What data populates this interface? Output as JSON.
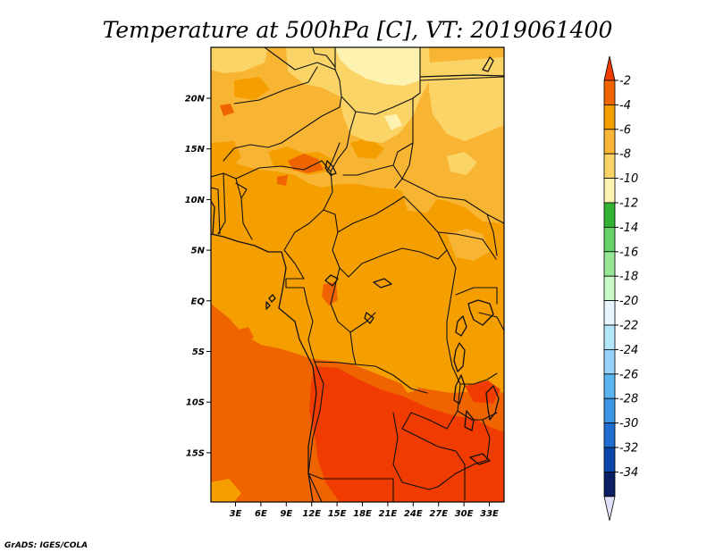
{
  "title": "Temperature at 500hPa [C], VT: 2019061400",
  "credit": "GrADS: IGES/COLA",
  "map": {
    "variable": "Temperature",
    "level": "500hPa",
    "units": "C",
    "valid_time": "2019061400",
    "lat_labels": [
      "20N",
      "15N",
      "10N",
      "5N",
      "EQ",
      "5S",
      "10S",
      "15S"
    ],
    "lon_labels": [
      "3E",
      "6E",
      "9E",
      "12E",
      "15E",
      "18E",
      "21E",
      "24E",
      "27E",
      "30E",
      "33E"
    ]
  },
  "colorbar": {
    "labels": [
      "-2",
      "-4",
      "-6",
      "-8",
      "-10",
      "-12",
      "-14",
      "-16",
      "-18",
      "-20",
      "-22",
      "-24",
      "-26",
      "-28",
      "-30",
      "-32",
      "-34"
    ],
    "colors": [
      "#f03c00",
      "#f06400",
      "#f59e00",
      "#f8b433",
      "#fbd468",
      "#fdf2b0",
      "#32b432",
      "#64d264",
      "#96e696",
      "#c8fac8",
      "#e6f5ff",
      "#b4e6fa",
      "#96d2fa",
      "#5ab4f0",
      "#3c96e6",
      "#1e6ed2",
      "#0a46aa",
      "#0a1e64",
      "#e0e0f8"
    ]
  }
}
